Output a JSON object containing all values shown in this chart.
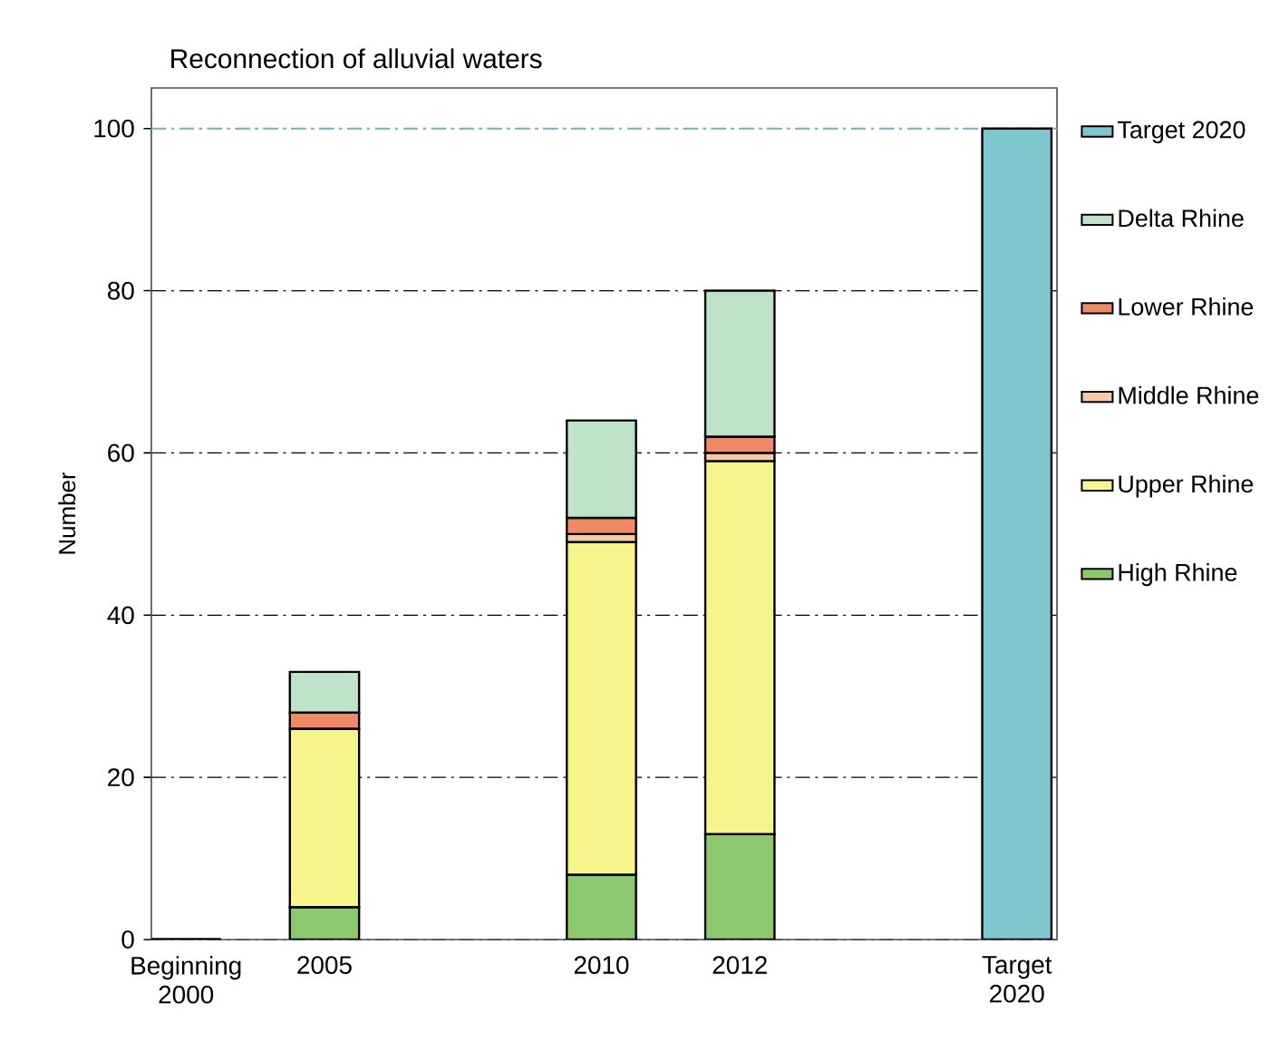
{
  "chart_data": {
    "type": "bar",
    "stacked": true,
    "title": "Reconnection of alluvial waters",
    "ylabel": "Number",
    "categories": [
      "Beginning 2000",
      "2005",
      null,
      "2010",
      "2012",
      null,
      "Target 2020"
    ],
    "series": [
      {
        "name": "High Rhine",
        "color": "#8cc86e",
        "values": [
          0,
          4,
          null,
          8,
          13,
          null,
          null
        ]
      },
      {
        "name": "Upper Rhine",
        "color": "#f5f58c",
        "values": [
          0,
          22,
          null,
          41,
          46,
          null,
          null
        ]
      },
      {
        "name": "Middle Rhine",
        "color": "#f7c9a6",
        "values": [
          0,
          0,
          null,
          1,
          1,
          null,
          null
        ]
      },
      {
        "name": "Lower Rhine",
        "color": "#ee8a66",
        "values": [
          0,
          2,
          null,
          2,
          2,
          null,
          null
        ]
      },
      {
        "name": "Delta Rhine",
        "color": "#bfe3c8",
        "values": [
          0,
          5,
          null,
          12,
          18,
          null,
          null
        ]
      },
      {
        "name": "Target 2020",
        "color": "#7ec6d0",
        "values": [
          null,
          null,
          null,
          null,
          null,
          null,
          100
        ]
      }
    ],
    "ylim": [
      0,
      105
    ],
    "yticks": [
      0,
      20,
      40,
      60,
      80,
      100
    ],
    "grid": "y",
    "legend": "right",
    "ref_lines": [
      {
        "axis": "y",
        "value": 100,
        "color": "#6fbcc8"
      }
    ]
  }
}
